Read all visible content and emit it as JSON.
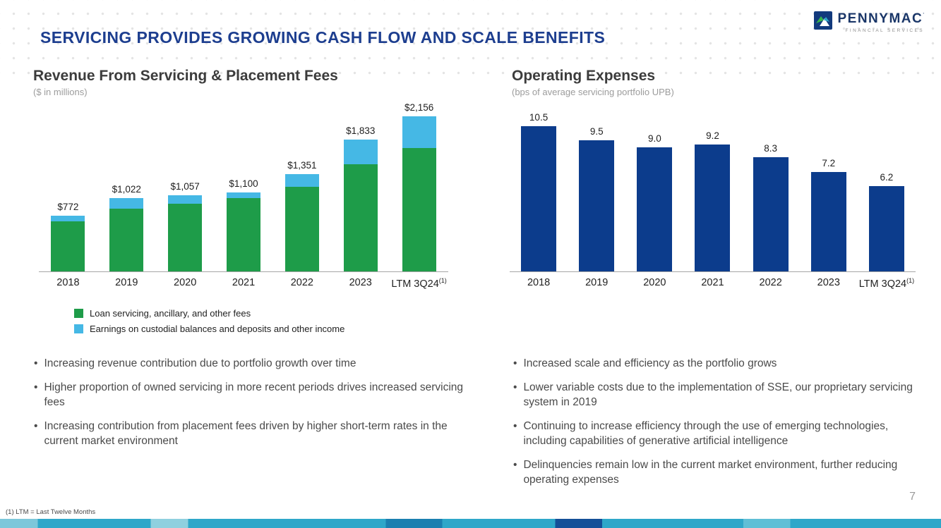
{
  "title": "SERVICING PROVIDES GROWING CASH FLOW AND SCALE BENEFITS",
  "logo": {
    "name": "PENNYMAC",
    "mark": "’",
    "tagline": "FINANCIAL SERVICES"
  },
  "colors": {
    "title_blue": "#1d3e8f",
    "green": "#1e9c49",
    "light_blue": "#45b8e5",
    "navy_bar": "#0c3c8c",
    "section_title": "#3c3c3c",
    "subtitle_gray": "#9c9c9c",
    "bullet_text": "#4a4a4a",
    "bottom_strip_teal": "#2ea7c9"
  },
  "left_section": {
    "title": "Revenue From Servicing & Placement Fees",
    "subtitle": "($ in millions)",
    "bullets": [
      "Increasing revenue contribution due to portfolio growth over time",
      "Higher proportion of owned servicing in more recent periods drives increased servicing fees",
      "Increasing contribution from placement fees driven by higher short-term rates in the current market environment"
    ]
  },
  "right_section": {
    "title": "Operating Expenses",
    "subtitle": "(bps of average servicing portfolio UPB)",
    "bullets": [
      "Increased scale and efficiency as the portfolio grows",
      "Lower variable costs due to the implementation of SSE, our proprietary servicing system in 2019",
      "Continuing to increase efficiency through the use of emerging technologies, including capabilities of generative artificial intelligence",
      "Delinquencies remain low in the current market environment, further reducing operating expenses"
    ]
  },
  "chart_data": [
    {
      "type": "bar",
      "stacked": true,
      "title": "Revenue From Servicing & Placement Fees",
      "subtitle": "($ in millions)",
      "categories": [
        "2018",
        "2019",
        "2020",
        "2021",
        "2022",
        "2023",
        "LTM 3Q24"
      ],
      "superscript": "(1)",
      "series": [
        {
          "name": "Loan servicing, ancillary, and other fees",
          "color": "#1e9c49",
          "values": [
            695,
            875,
            940,
            1020,
            1175,
            1490,
            1710
          ]
        },
        {
          "name": "Earnings on custodial balances and deposits and other income",
          "color": "#45b8e5",
          "values": [
            77,
            147,
            117,
            80,
            176,
            343,
            446
          ]
        }
      ],
      "totals": [
        772,
        1022,
        1057,
        1100,
        1351,
        1833,
        2156
      ],
      "total_labels": [
        "$772",
        "$1,022",
        "$1,057",
        "$1,100",
        "$1,351",
        "$1,833",
        "$2,156"
      ],
      "ylim": [
        0,
        2400
      ],
      "grid": false,
      "legend_position": "bottom"
    },
    {
      "type": "bar",
      "stacked": false,
      "title": "Operating Expenses",
      "subtitle": "(bps of average servicing portfolio UPB)",
      "categories": [
        "2018",
        "2019",
        "2020",
        "2021",
        "2022",
        "2023",
        "LTM 3Q24"
      ],
      "superscript": "(1)",
      "values": [
        10.5,
        9.5,
        9.0,
        9.2,
        8.3,
        7.2,
        6.2
      ],
      "value_labels": [
        "10.5",
        "9.5",
        "9.0",
        "9.2",
        "8.3",
        "7.2",
        "6.2"
      ],
      "color": "#0c3c8c",
      "ylim": [
        0,
        12
      ],
      "grid": false,
      "legend_position": "none"
    }
  ],
  "footnote": "(1)  LTM = Last Twelve Months",
  "page_number": "7"
}
